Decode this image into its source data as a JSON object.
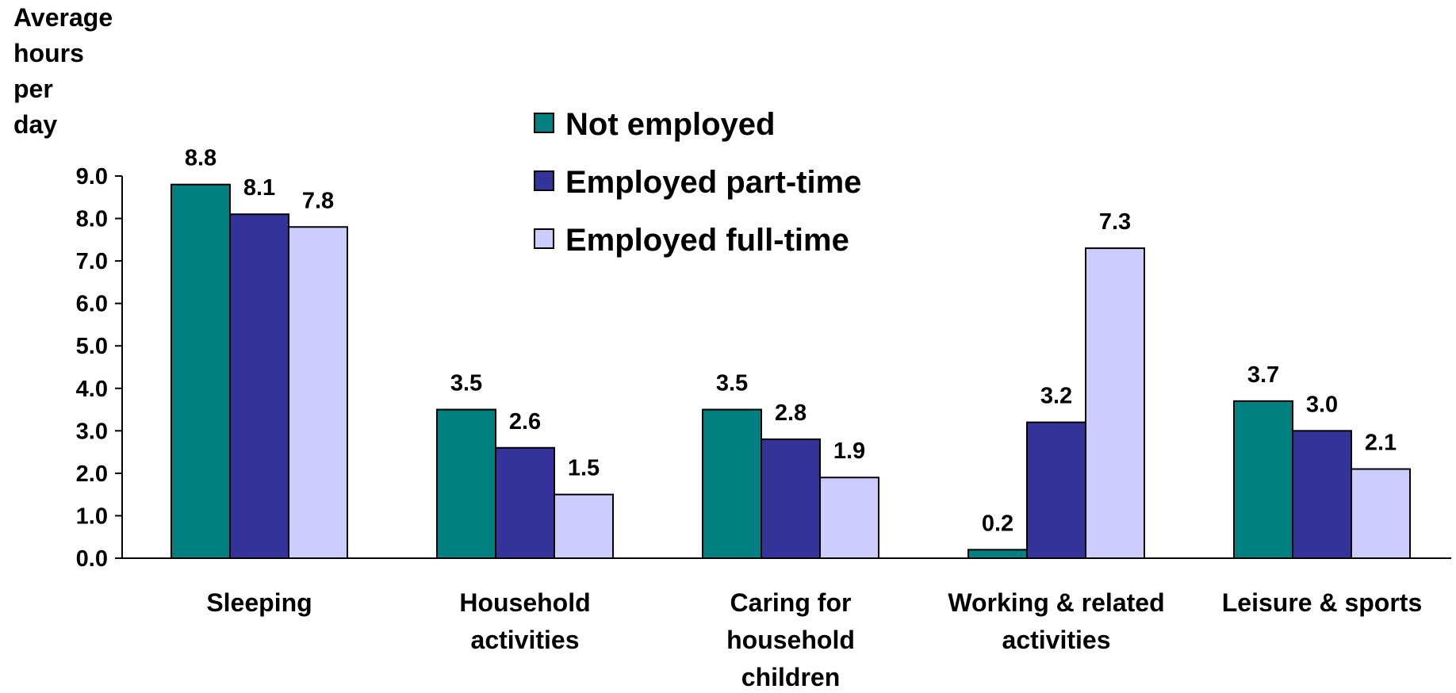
{
  "chart_data": {
    "type": "bar",
    "ylabel": [
      "Average",
      "hours",
      "per",
      "day"
    ],
    "categories": [
      [
        "Sleeping"
      ],
      [
        "Household",
        "activities"
      ],
      [
        "Caring for",
        "household",
        "children"
      ],
      [
        "Working & related",
        "activities"
      ],
      [
        "Leisure & sports"
      ]
    ],
    "series": [
      {
        "name": "Not employed",
        "color": "#008080",
        "values": [
          8.8,
          3.5,
          3.5,
          0.2,
          3.7
        ]
      },
      {
        "name": "Employed part-time",
        "color": "#333399",
        "values": [
          8.1,
          2.6,
          2.8,
          3.2,
          3.0
        ]
      },
      {
        "name": "Employed full-time",
        "color": "#ccccff",
        "values": [
          7.8,
          1.5,
          1.9,
          7.3,
          2.1
        ]
      }
    ],
    "ylim": [
      0,
      9
    ],
    "yticks": [
      "0.0",
      "1.0",
      "2.0",
      "3.0",
      "4.0",
      "5.0",
      "6.0",
      "7.0",
      "8.0",
      "9.0"
    ],
    "legend_position": "top-center",
    "grid": false
  }
}
